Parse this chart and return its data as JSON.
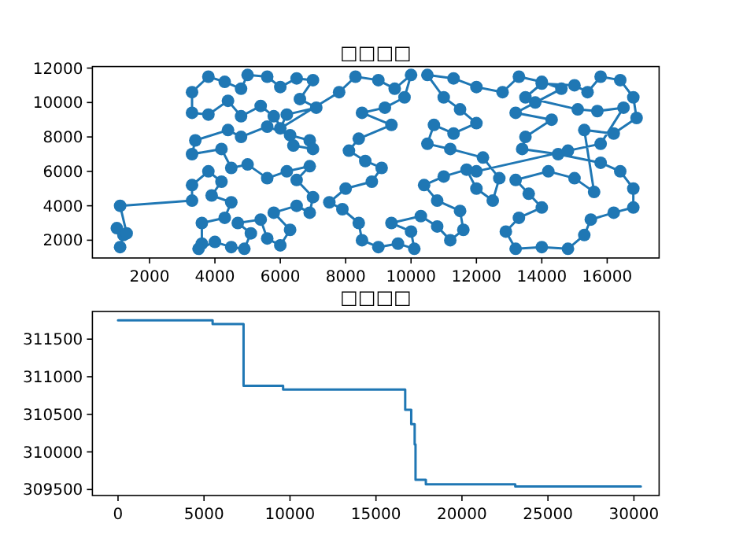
{
  "chart_data": [
    {
      "type": "line",
      "title": "□□□□",
      "marker": "circle",
      "line_style": "solid",
      "xlim": [
        252,
        17589
      ],
      "ylim": [
        967,
        12090
      ],
      "xticks": [
        2000,
        4000,
        6000,
        8000,
        10000,
        12000,
        14000,
        16000
      ],
      "yticks": [
        2000,
        4000,
        6000,
        8000,
        10000,
        12000
      ],
      "series": [
        {
          "color": "#1f77b4",
          "x": [
            1100,
            1200,
            1000,
            1300,
            1100,
            3300,
            3300,
            3800,
            4200,
            3900,
            4500,
            4300,
            3600,
            3600,
            3500,
            4000,
            4500,
            4900,
            5100,
            4700,
            5400,
            5600,
            6000,
            6300,
            5800,
            6500,
            6900,
            7000,
            6500,
            6900,
            6200,
            5600,
            5000,
            4500,
            4200,
            3300,
            3400,
            4400,
            4800,
            5600,
            6300,
            6900,
            7000,
            6400,
            5800,
            5400,
            4800,
            4400,
            3800,
            3300,
            3300,
            3800,
            4300,
            4800,
            5000,
            5600,
            6000,
            6500,
            7000,
            6600,
            7100,
            6200,
            6000,
            7800,
            8300,
            9000,
            9500,
            10000,
            9800,
            9200,
            8500,
            9400,
            8400,
            8100,
            8600,
            9100,
            8800,
            8000,
            7500,
            7900,
            8400,
            8500,
            9000,
            9600,
            10100,
            10000,
            9400,
            10300,
            10800,
            11200,
            11600,
            11500,
            10800,
            10400,
            11000,
            11700,
            12000,
            12500,
            12700,
            12200,
            11200,
            10500,
            10700,
            11300,
            12000,
            11500,
            11000,
            10500,
            11300,
            12000,
            12800,
            13300,
            14000,
            14600,
            13800,
            13200,
            14300,
            13500,
            13400,
            14500,
            15800,
            16400,
            16800,
            16800,
            16200,
            15500,
            15300,
            14800,
            14000,
            13200,
            12900,
            13300,
            14000,
            13600,
            13200,
            14200,
            15000,
            15600,
            15300,
            16200,
            16900,
            16800,
            16400,
            15800,
            15400,
            15000,
            14000,
            13500,
            15100,
            15700,
            16500,
            15800,
            14800,
            12000
          ],
          "values": [
            1600,
            2300,
            2700,
            2400,
            4000,
            4300,
            5200,
            6000,
            5400,
            4600,
            4200,
            3300,
            3000,
            1800,
            1500,
            1900,
            1600,
            1500,
            2400,
            3000,
            3200,
            2100,
            1700,
            2600,
            3600,
            4000,
            3600,
            4500,
            5500,
            6300,
            6000,
            5600,
            6400,
            6200,
            7300,
            7000,
            7800,
            8400,
            8000,
            8600,
            8100,
            7800,
            7300,
            7500,
            9200,
            9800,
            9200,
            10100,
            9300,
            9400,
            10600,
            11500,
            11200,
            10800,
            11600,
            11500,
            10900,
            11400,
            11300,
            10200,
            9700,
            9300,
            8500,
            10600,
            11500,
            11300,
            10800,
            11600,
            10300,
            9700,
            9400,
            8700,
            7900,
            7200,
            6600,
            6200,
            5400,
            5000,
            4200,
            3800,
            3000,
            2000,
            1600,
            1800,
            1500,
            2500,
            3000,
            3400,
            2800,
            2000,
            2600,
            3700,
            4300,
            5200,
            5700,
            6100,
            5000,
            4300,
            5600,
            6800,
            7300,
            7600,
            8700,
            8200,
            8800,
            9600,
            10300,
            11600,
            11400,
            10900,
            10600,
            11500,
            11200,
            10800,
            10000,
            9400,
            9000,
            8000,
            7300,
            7000,
            6500,
            6000,
            5000,
            3900,
            3600,
            3200,
            2300,
            1500,
            1600,
            1500,
            2500,
            3300,
            3900,
            4700,
            5500,
            6000,
            5600,
            4800,
            8400,
            8200,
            9100,
            10300,
            11300,
            11500,
            10600,
            11000,
            11100,
            10300,
            9600,
            9500,
            9700,
            7600,
            7200,
            6000
          ]
        }
      ]
    },
    {
      "type": "step",
      "title": "□□□□",
      "line_style": "solid",
      "xlim": [
        -1490,
        31465
      ],
      "ylim": [
        309420,
        311868
      ],
      "xticks": [
        0,
        5000,
        10000,
        15000,
        20000,
        25000,
        30000
      ],
      "yticks": [
        309500,
        310000,
        310500,
        311000,
        311500
      ],
      "series": [
        {
          "color": "#1f77b4",
          "x": [
            0,
            5500,
            7300,
            9600,
            16700,
            17050,
            17250,
            17300,
            17900,
            23100,
            30400
          ],
          "values": [
            311750,
            311700,
            310880,
            310830,
            310560,
            310370,
            310100,
            309630,
            309570,
            309540,
            309540
          ]
        }
      ]
    }
  ]
}
